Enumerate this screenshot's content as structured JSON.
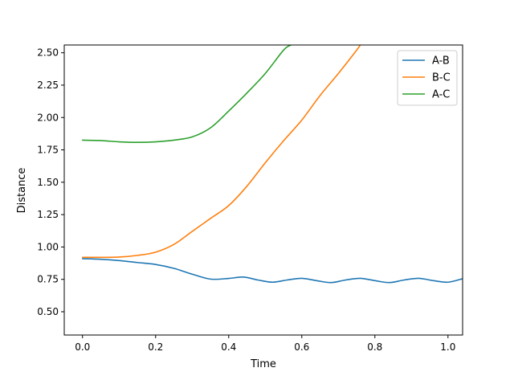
{
  "chart_data": {
    "type": "line",
    "title": "",
    "xlabel": "Time",
    "ylabel": "Distance",
    "xlim": [
      -0.05,
      1.04
    ],
    "ylim": [
      0.32,
      2.56
    ],
    "x_ticks": [
      0.0,
      0.2,
      0.4,
      0.6,
      0.8,
      1.0
    ],
    "x_tick_labels": [
      "0.0",
      "0.2",
      "0.4",
      "0.6",
      "0.8",
      "1.0"
    ],
    "y_ticks": [
      0.5,
      0.75,
      1.0,
      1.25,
      1.5,
      1.75,
      2.0,
      2.25,
      2.5
    ],
    "y_tick_labels": [
      "0.50",
      "0.75",
      "1.00",
      "1.25",
      "1.50",
      "1.75",
      "2.00",
      "2.25",
      "2.50"
    ],
    "grid": false,
    "legend_position": "top-right",
    "series": [
      {
        "name": "A-B",
        "color": "#1f77b4",
        "x": [
          0.0,
          0.05,
          0.1,
          0.15,
          0.2,
          0.25,
          0.3,
          0.35,
          0.4,
          0.44,
          0.48,
          0.52,
          0.56,
          0.6,
          0.64,
          0.68,
          0.72,
          0.76,
          0.8,
          0.84,
          0.88,
          0.92,
          0.96,
          1.0,
          1.04
        ],
        "y": [
          0.91,
          0.905,
          0.895,
          0.88,
          0.865,
          0.835,
          0.79,
          0.752,
          0.757,
          0.768,
          0.745,
          0.728,
          0.745,
          0.758,
          0.74,
          0.725,
          0.745,
          0.758,
          0.74,
          0.725,
          0.745,
          0.758,
          0.74,
          0.728,
          0.755
        ]
      },
      {
        "name": "B-C",
        "color": "#ff7f0e",
        "x": [
          0.0,
          0.05,
          0.1,
          0.15,
          0.2,
          0.25,
          0.3,
          0.35,
          0.4,
          0.45,
          0.5,
          0.55,
          0.6,
          0.65,
          0.7,
          0.75,
          0.76
        ],
        "y": [
          0.92,
          0.92,
          0.922,
          0.935,
          0.96,
          1.02,
          1.12,
          1.22,
          1.32,
          1.47,
          1.65,
          1.82,
          1.98,
          2.17,
          2.34,
          2.52,
          2.56
        ]
      },
      {
        "name": "A-C",
        "color": "#2ca02c",
        "x": [
          0.0,
          0.05,
          0.1,
          0.15,
          0.2,
          0.25,
          0.3,
          0.35,
          0.4,
          0.45,
          0.5,
          0.55,
          0.57
        ],
        "y": [
          1.825,
          1.822,
          1.812,
          1.808,
          1.812,
          1.825,
          1.85,
          1.92,
          2.05,
          2.19,
          2.34,
          2.52,
          2.56
        ]
      }
    ]
  }
}
